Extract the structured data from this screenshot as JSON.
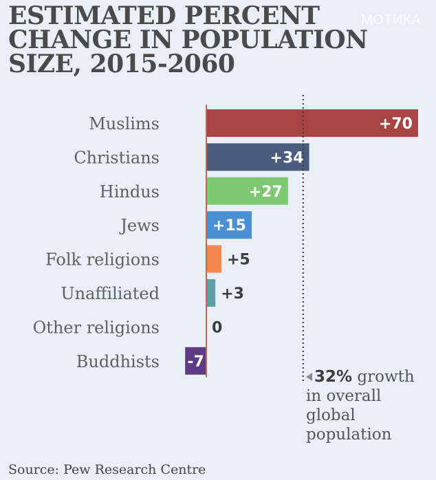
{
  "title": "ESTIMATED PERCENT CHANGE IN POPULATION SIZE, 2015-2060",
  "watermark": "MOTИКА",
  "annotation": {
    "pct": "32%",
    "text": "growth in overall global population"
  },
  "source": "Source: Pew Research Centre",
  "chart_data": {
    "type": "bar",
    "orientation": "horizontal",
    "categories": [
      "Muslims",
      "Christians",
      "Hindus",
      "Jews",
      "Folk religions",
      "Unaffiliated",
      "Other religions",
      "Buddhists"
    ],
    "values": [
      70,
      34,
      27,
      15,
      5,
      3,
      0,
      -7
    ],
    "value_labels": [
      "+70",
      "+34",
      "+27",
      "+15",
      "+5",
      "+3",
      "0",
      "-7"
    ],
    "colors": [
      "#a94442",
      "#4a5d7e",
      "#7dc870",
      "#4b8fd4",
      "#f5894d",
      "#5f9ea8",
      "#cccccc",
      "#5e3b84"
    ],
    "reference_line": {
      "value": 32,
      "style": "dotted"
    },
    "xlim": [
      -7,
      70
    ],
    "grid": false,
    "legend": "none"
  }
}
